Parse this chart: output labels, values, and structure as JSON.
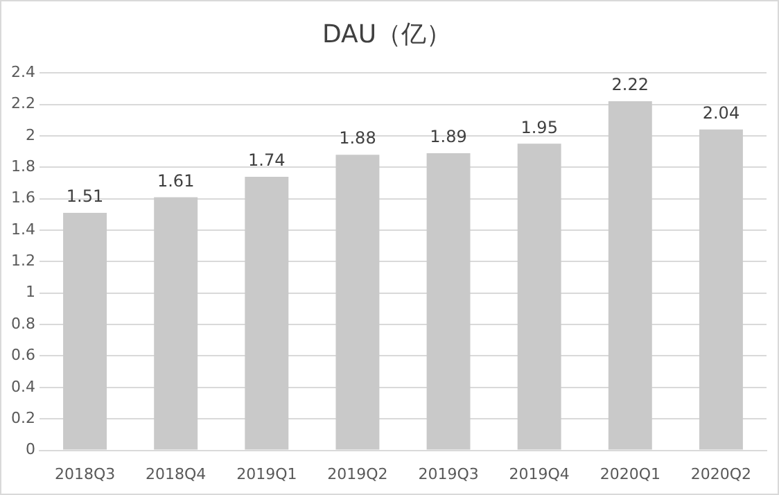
{
  "chart_data": {
    "type": "bar",
    "title": "DAU（亿）",
    "categories": [
      "2018Q3",
      "2018Q4",
      "2019Q1",
      "2019Q2",
      "2019Q3",
      "2019Q4",
      "2020Q1",
      "2020Q2"
    ],
    "values": [
      1.51,
      1.61,
      1.74,
      1.88,
      1.89,
      1.95,
      2.22,
      2.04
    ],
    "color": "#c9c9c9",
    "ylim": [
      0,
      2.4
    ],
    "yticks": [
      0,
      0.2,
      0.4,
      0.6,
      0.8,
      1,
      1.2,
      1.4,
      1.6,
      1.8,
      2,
      2.2,
      2.4
    ],
    "grid": "y",
    "data_labels": true,
    "legend": false
  }
}
